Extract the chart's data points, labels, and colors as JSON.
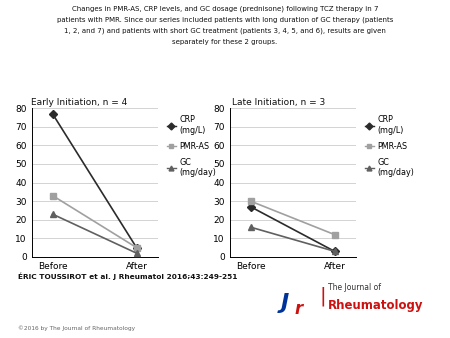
{
  "title_line1": "Changes in PMR-AS, CRP levels, and GC dosage (prednisone) following TCZ therapy in 7",
  "title_line2": "patients with PMR. Since our series included patients with long duration of GC therapy (patients",
  "title_line3": "1, 2, and 7) and patients with short GC treatment (patients 3, 4, 5, and 6), results are given",
  "title_line4": "separately for these 2 groups.",
  "left_subtitle": "Early Initiation, n = 4",
  "right_subtitle": "Late Initiation, n = 3",
  "left": {
    "CRP": {
      "before": 77,
      "after": 5
    },
    "PMR_AS": {
      "before": 33,
      "after": 5
    },
    "GC": {
      "before": 23,
      "after": 2
    }
  },
  "right": {
    "CRP": {
      "before": 27,
      "after": 3
    },
    "PMR_AS": {
      "before": 30,
      "after": 12
    },
    "GC": {
      "before": 16,
      "after": 3
    }
  },
  "ylim": [
    0,
    80
  ],
  "yticks": [
    0,
    10,
    20,
    30,
    40,
    50,
    60,
    70,
    80
  ],
  "xtick_labels": [
    "Before",
    "After"
  ],
  "crp_color": "#2b2b2b",
  "pmras_color": "#a0a0a0",
  "gc_color": "#606060",
  "author_text": "ÉRIC TOUSSIROT et al. J Rheumatol 2016;43:249-251",
  "copyright_text": "©2016 by The Journal of Rheumatology",
  "bg_color": "#ffffff",
  "journal_text1": "The Journal of",
  "journal_text2": "Rheumatology",
  "journal_color": "#cc1111"
}
